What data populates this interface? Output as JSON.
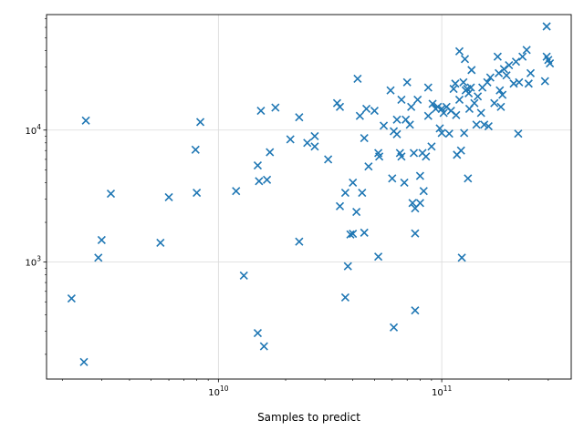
{
  "chart_data": {
    "type": "scatter",
    "title": "",
    "xlabel": "Samples to predict",
    "ylabel": "",
    "xscale": "log",
    "yscale": "log",
    "xlim": [
      1700000000.0,
      380000000000.0
    ],
    "ylim": [
      130,
      75000
    ],
    "grid": true,
    "marker": "x",
    "color": "#1f77b4",
    "x_ticks": [
      {
        "value": 10000000000.0,
        "base": "10",
        "exp": "10"
      },
      {
        "value": 100000000000.0,
        "base": "10",
        "exp": "11"
      }
    ],
    "y_ticks": [
      {
        "value": 1000,
        "base": "10",
        "exp": "3"
      },
      {
        "value": 10000,
        "base": "10",
        "exp": "4"
      }
    ],
    "points": [
      [
        2200000000.0,
        530
      ],
      [
        2500000000.0,
        175
      ],
      [
        2550000000.0,
        11800
      ],
      [
        2900000000.0,
        1080
      ],
      [
        3000000000.0,
        1470
      ],
      [
        3300000000.0,
        3300
      ],
      [
        5500000000.0,
        1400
      ],
      [
        6000000000.0,
        3100
      ],
      [
        7900000000.0,
        7100
      ],
      [
        8000000000.0,
        3350
      ],
      [
        8300000000.0,
        11500
      ],
      [
        12000000000.0,
        3450
      ],
      [
        13000000000.0,
        790
      ],
      [
        15000000000.0,
        5400
      ],
      [
        15000000000.0,
        290
      ],
      [
        15200000000.0,
        4100
      ],
      [
        15500000000.0,
        14000
      ],
      [
        16000000000.0,
        230
      ],
      [
        16500000000.0,
        4200
      ],
      [
        17000000000.0,
        6800
      ],
      [
        18000000000.0,
        14800
      ],
      [
        21000000000.0,
        8500
      ],
      [
        23000000000.0,
        12500
      ],
      [
        23000000000.0,
        1430
      ],
      [
        25000000000.0,
        8000
      ],
      [
        27000000000.0,
        9000
      ],
      [
        27000000000.0,
        7500
      ],
      [
        31000000000.0,
        6000
      ],
      [
        34000000000.0,
        16000
      ],
      [
        35000000000.0,
        15000
      ],
      [
        35000000000.0,
        2650
      ],
      [
        37000000000.0,
        3350
      ],
      [
        37000000000.0,
        540
      ],
      [
        38000000000.0,
        930
      ],
      [
        39000000000.0,
        1620
      ],
      [
        40000000000.0,
        4000
      ],
      [
        40000000000.0,
        1640
      ],
      [
        41500000000.0,
        2400
      ],
      [
        42000000000.0,
        24500
      ],
      [
        43000000000.0,
        12800
      ],
      [
        44000000000.0,
        3350
      ],
      [
        45000000000.0,
        1670
      ],
      [
        45000000000.0,
        8700
      ],
      [
        46000000000.0,
        14500
      ],
      [
        47000000000.0,
        5300
      ],
      [
        50000000000.0,
        14000
      ],
      [
        52000000000.0,
        6700
      ],
      [
        52500000000.0,
        6300
      ],
      [
        52000000000.0,
        1100
      ],
      [
        55000000000.0,
        10800
      ],
      [
        59000000000.0,
        20000
      ],
      [
        60000000000.0,
        4300
      ],
      [
        61000000000.0,
        9800
      ],
      [
        61000000000.0,
        320
      ],
      [
        63000000000.0,
        12000
      ],
      [
        63000000000.0,
        9300
      ],
      [
        65000000000.0,
        6700
      ],
      [
        66000000000.0,
        6300
      ],
      [
        66000000000.0,
        17000
      ],
      [
        68000000000.0,
        4000
      ],
      [
        69000000000.0,
        12000
      ],
      [
        70000000000.0,
        23000
      ],
      [
        72000000000.0,
        11000
      ],
      [
        73000000000.0,
        15000
      ],
      [
        74000000000.0,
        2800
      ],
      [
        75000000000.0,
        6700
      ],
      [
        76000000000.0,
        1650
      ],
      [
        76000000000.0,
        2550
      ],
      [
        76000000000.0,
        430
      ],
      [
        78000000000.0,
        17000
      ],
      [
        80000000000.0,
        4500
      ],
      [
        80000000000.0,
        2800
      ],
      [
        82000000000.0,
        6700
      ],
      [
        83000000000.0,
        3450
      ],
      [
        85000000000.0,
        6300
      ],
      [
        87000000000.0,
        21000
      ],
      [
        87000000000.0,
        12800
      ],
      [
        90000000000.0,
        7500
      ],
      [
        91000000000.0,
        15800
      ],
      [
        94000000000.0,
        14500
      ],
      [
        96000000000.0,
        15000
      ],
      [
        98000000000.0,
        10300
      ],
      [
        100000000000.0,
        14500
      ],
      [
        100000000000.0,
        9500
      ],
      [
        102000000000.0,
        13500
      ],
      [
        105000000000.0,
        15000
      ],
      [
        108000000000.0,
        9400
      ],
      [
        110000000000.0,
        14000
      ],
      [
        113000000000.0,
        20500
      ],
      [
        115000000000.0,
        22500
      ],
      [
        116000000000.0,
        13000
      ],
      [
        117000000000.0,
        6500
      ],
      [
        120000000000.0,
        39500
      ],
      [
        120000000000.0,
        17000
      ],
      [
        122000000000.0,
        7000
      ],
      [
        123000000000.0,
        1080
      ],
      [
        125000000000.0,
        23000
      ],
      [
        126000000000.0,
        9500
      ],
      [
        127000000000.0,
        34500
      ],
      [
        128000000000.0,
        20000
      ],
      [
        130000000000.0,
        20500
      ],
      [
        131000000000.0,
        4300
      ],
      [
        132000000000.0,
        19000
      ],
      [
        133000000000.0,
        14500
      ],
      [
        135000000000.0,
        21000
      ],
      [
        136000000000.0,
        28500
      ],
      [
        140000000000.0,
        16000
      ],
      [
        143000000000.0,
        11000
      ],
      [
        145000000000.0,
        18000
      ],
      [
        150000000000.0,
        13500
      ],
      [
        152000000000.0,
        21000
      ],
      [
        155000000000.0,
        11000
      ],
      [
        160000000000.0,
        23000
      ],
      [
        162000000000.0,
        10700
      ],
      [
        165000000000.0,
        25000
      ],
      [
        172000000000.0,
        16000
      ],
      [
        178000000000.0,
        36000
      ],
      [
        180000000000.0,
        27000
      ],
      [
        182000000000.0,
        20000
      ],
      [
        184000000000.0,
        15000
      ],
      [
        187000000000.0,
        18500
      ],
      [
        190000000000.0,
        29000
      ],
      [
        195000000000.0,
        26000
      ],
      [
        200000000000.0,
        31000
      ],
      [
        210000000000.0,
        22500
      ],
      [
        215000000000.0,
        33000
      ],
      [
        220000000000.0,
        9400
      ],
      [
        222000000000.0,
        23000
      ],
      [
        230000000000.0,
        36000
      ],
      [
        240000000000.0,
        40500
      ],
      [
        245000000000.0,
        22500
      ],
      [
        250000000000.0,
        27000
      ],
      [
        290000000000.0,
        23500
      ],
      [
        295000000000.0,
        61000
      ],
      [
        295000000000.0,
        36000
      ],
      [
        300000000000.0,
        34000
      ],
      [
        305000000000.0,
        32000
      ]
    ]
  }
}
